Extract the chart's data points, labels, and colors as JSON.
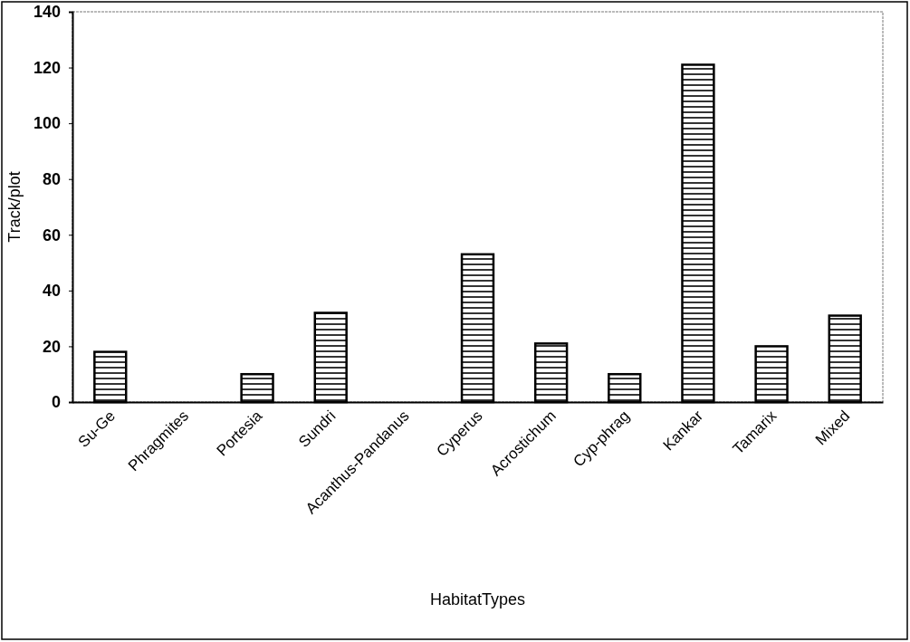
{
  "chart_data": {
    "type": "bar",
    "xlabel": "HabitatTypes",
    "ylabel": "Track/plot",
    "categories": [
      "Su-Ge",
      "Phragmites",
      "Portesia",
      "Sundri",
      "Acanthus-Pandanus",
      "Cyperus",
      "Acrostichum",
      "Cyp-phrag",
      "Kankar",
      "Tamarix",
      "Mixed"
    ],
    "values": [
      18,
      0,
      10,
      32,
      0,
      53,
      21,
      10,
      121,
      20,
      31
    ],
    "color": "#000000",
    "ylim": [
      0,
      140
    ],
    "yticks": [
      0,
      20,
      40,
      60,
      80,
      100,
      120,
      140
    ],
    "grid": false
  }
}
